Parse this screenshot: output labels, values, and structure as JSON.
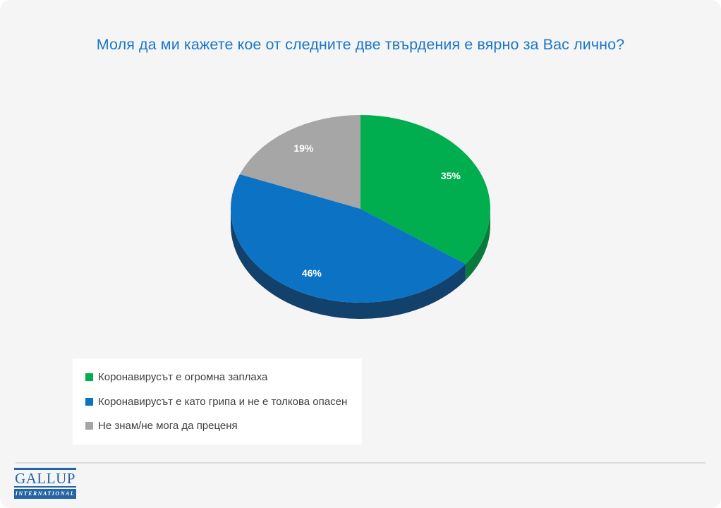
{
  "page": {
    "background_color": "#F5F5F5",
    "title_color": "#1C77C8"
  },
  "chart_data": {
    "type": "pie",
    "title": "Моля да ми кажете кое от следните две твърдения е вярно за Вас лично?",
    "unit": "%",
    "effect": "3d",
    "start_angle_deg": 0,
    "direction": "clockwise",
    "legend_position": "bottom-left",
    "slices": [
      {
        "label": "Коронавирусът е огромна заплаха",
        "value": 35,
        "value_label": "35%",
        "color": "#00AE50",
        "side_color": "#0A7A3C"
      },
      {
        "label": "Коронавирусът е като грипа и не е толкова опасен",
        "value": 46,
        "value_label": "46%",
        "color": "#0C72C4",
        "side_color": "#12416B"
      },
      {
        "label": "Не знам/не мога да преценя",
        "value": 19,
        "value_label": "19%",
        "color": "#A6A6A6",
        "side_color": "#7F7F7F"
      }
    ]
  },
  "footer": {
    "logo_line1": "GALLUP",
    "logo_line2": "INTERNATIONAL"
  }
}
